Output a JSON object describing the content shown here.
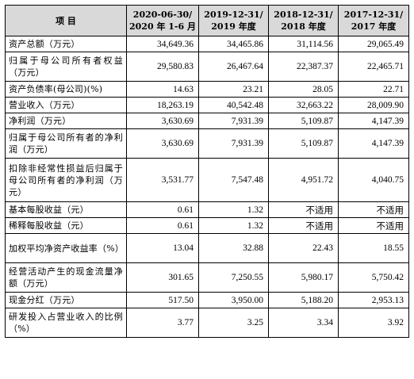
{
  "table": {
    "headers": [
      "项    目",
      "2020-06-30/\n2020 年 1-6 月",
      "2019-12-31/\n2019 年度",
      "2018-12-31/\n2018 年度",
      "2017-12-31/\n2017 年度"
    ],
    "rows": [
      {
        "label": "资产总额（万元）",
        "values": [
          "34,649.36",
          "34,465.86",
          "31,114.56",
          "29,065.49"
        ]
      },
      {
        "label": "归属于母公司所有者权益（万元）",
        "values": [
          "29,580.83",
          "26,467.64",
          "22,387.37",
          "22,465.71"
        ]
      },
      {
        "label": "资产负债率(母公司)(%)",
        "values": [
          "14.63",
          "23.21",
          "28.05",
          "22.71"
        ]
      },
      {
        "label": "营业收入（万元）",
        "values": [
          "18,263.19",
          "40,542.48",
          "32,663.22",
          "28,009.90"
        ]
      },
      {
        "label": "净利润（万元）",
        "values": [
          "3,630.69",
          "7,931.39",
          "5,109.87",
          "4,147.39"
        ]
      },
      {
        "label": "归属于母公司所有者的净利润（万元）",
        "values": [
          "3,630.69",
          "7,931.39",
          "5,109.87",
          "4,147.39"
        ]
      },
      {
        "label": "扣除非经常性损益后归属于母公司所有者的净利润（万元）",
        "values": [
          "3,531.77",
          "7,547.48",
          "4,951.72",
          "4,040.75"
        ]
      },
      {
        "label": "基本每股收益（元）",
        "values": [
          "0.61",
          "1.32",
          "不适用",
          "不适用"
        ]
      },
      {
        "label": "稀释每股收益（元）",
        "values": [
          "0.61",
          "1.32",
          "不适用",
          "不适用"
        ]
      },
      {
        "label": "加权平均净资产收益率（%）",
        "values": [
          "13.04",
          "32.88",
          "22.43",
          "18.55"
        ]
      },
      {
        "label": "经营活动产生的现金流量净额（万元）",
        "values": [
          "301.65",
          "7,250.55",
          "5,980.17",
          "5,750.42"
        ]
      },
      {
        "label": "现金分红（万元）",
        "values": [
          "517.50",
          "3,950.00",
          "5,188.20",
          "2,953.13"
        ]
      },
      {
        "label": "研发投入占营业收入的比例（%）",
        "values": [
          "3.77",
          "3.25",
          "3.34",
          "3.92"
        ]
      }
    ]
  }
}
